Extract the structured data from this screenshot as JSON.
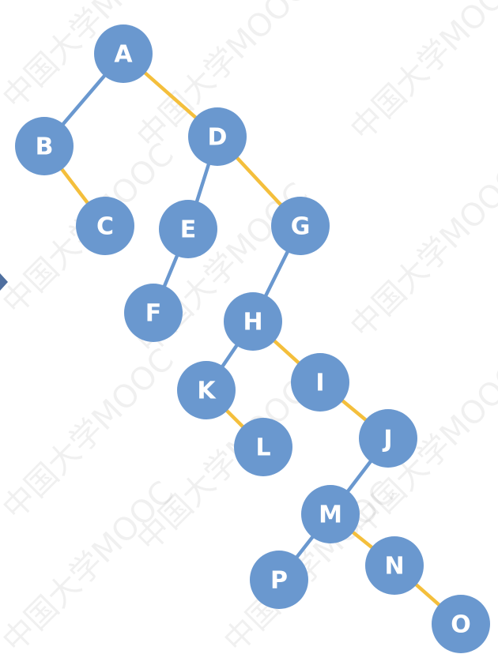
{
  "colors": {
    "node_fill": "#6a98cf",
    "node_stroke": "#6a98cf",
    "left_edge": "#6a98cf",
    "right_edge": "#f4bf3c",
    "label": "#ffffff"
  },
  "nodes": [
    {
      "id": "A",
      "label": "A"
    },
    {
      "id": "B",
      "label": "B"
    },
    {
      "id": "C",
      "label": "C"
    },
    {
      "id": "D",
      "label": "D"
    },
    {
      "id": "E",
      "label": "E"
    },
    {
      "id": "F",
      "label": "F"
    },
    {
      "id": "G",
      "label": "G"
    },
    {
      "id": "H",
      "label": "H"
    },
    {
      "id": "K",
      "label": "K"
    },
    {
      "id": "L",
      "label": "L"
    },
    {
      "id": "I",
      "label": "I"
    },
    {
      "id": "J",
      "label": "J"
    },
    {
      "id": "M",
      "label": "M"
    },
    {
      "id": "P",
      "label": "P"
    },
    {
      "id": "N",
      "label": "N"
    },
    {
      "id": "O",
      "label": "O"
    }
  ],
  "edges": [
    {
      "from": "A",
      "to": "B",
      "kind": "left"
    },
    {
      "from": "A",
      "to": "D",
      "kind": "right"
    },
    {
      "from": "B",
      "to": "C",
      "kind": "right"
    },
    {
      "from": "D",
      "to": "E",
      "kind": "left"
    },
    {
      "from": "D",
      "to": "G",
      "kind": "right"
    },
    {
      "from": "E",
      "to": "F",
      "kind": "left"
    },
    {
      "from": "G",
      "to": "H",
      "kind": "left"
    },
    {
      "from": "H",
      "to": "K",
      "kind": "left"
    },
    {
      "from": "H",
      "to": "I",
      "kind": "right"
    },
    {
      "from": "K",
      "to": "L",
      "kind": "right"
    },
    {
      "from": "I",
      "to": "J",
      "kind": "right"
    },
    {
      "from": "J",
      "to": "M",
      "kind": "left"
    },
    {
      "from": "M",
      "to": "P",
      "kind": "left"
    },
    {
      "from": "M",
      "to": "N",
      "kind": "right"
    },
    {
      "from": "N",
      "to": "O",
      "kind": "right"
    }
  ],
  "watermark": {
    "text": "中国大学MOOC"
  }
}
